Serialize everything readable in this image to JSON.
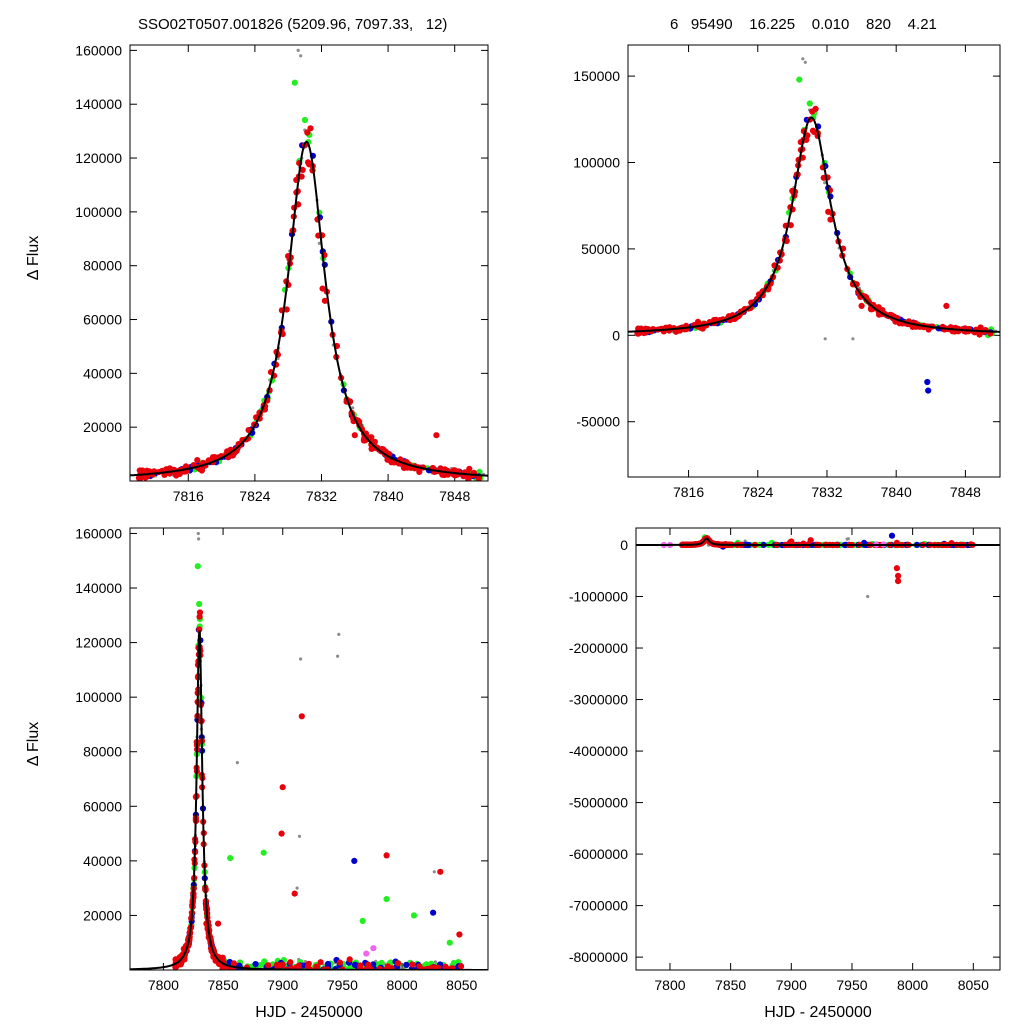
{
  "header": {
    "left": "SSO02T0507.001826 (5209.96, 7097.33,   12)",
    "right": "6   95490    16.225    0.010    820    4.21"
  },
  "colors": {
    "red": "#e8000b",
    "blue": "#0000cc",
    "green": "#22ee22",
    "gray": "#8c8c8c",
    "magenta": "#ee66ee",
    "model": "#000000"
  },
  "chart_data": [
    {
      "type": "scatter",
      "panel": "top-left",
      "xlabel": "",
      "ylabel": "Δ Flux",
      "xlim": [
        7809,
        7852
      ],
      "ylim": [
        0,
        162000
      ],
      "xticks": [
        "7816",
        "7824",
        "7832",
        "7840",
        "7848"
      ],
      "yticks": [
        "20000",
        "40000",
        "60000",
        "80000",
        "100000",
        "120000",
        "140000",
        "160000"
      ],
      "model": {
        "t0": 7830.2,
        "peak": 126000,
        "tE": 2.75
      }
    },
    {
      "type": "scatter",
      "panel": "top-right",
      "xlabel": "",
      "ylabel": "",
      "xlim": [
        7809,
        7852
      ],
      "ylim": [
        -82000,
        168000
      ],
      "xticks": [
        "7816",
        "7824",
        "7832",
        "7840",
        "7848"
      ],
      "yticks": [
        "-50000",
        "0",
        "50000",
        "100000",
        "150000"
      ],
      "model": {
        "t0": 7830.2,
        "peak": 126000,
        "tE": 2.75
      }
    },
    {
      "type": "scatter",
      "panel": "bottom-left",
      "xlabel": "HJD - 2450000",
      "ylabel": "Δ Flux",
      "xlim": [
        7772,
        8072
      ],
      "ylim": [
        0,
        162000
      ],
      "xticks": [
        "7800",
        "7850",
        "7900",
        "7950",
        "8000",
        "8050"
      ],
      "yticks": [
        "20000",
        "40000",
        "60000",
        "80000",
        "100000",
        "120000",
        "140000",
        "160000"
      ],
      "model": {
        "t0": 7830.2,
        "peak": 126000,
        "tE": 2.75
      }
    },
    {
      "type": "scatter",
      "panel": "bottom-right",
      "xlabel": "HJD - 2450000",
      "ylabel": "",
      "xlim": [
        7772,
        8072
      ],
      "ylim": [
        -8250000,
        330000
      ],
      "xticks": [
        "7800",
        "7850",
        "7900",
        "7950",
        "8000",
        "8050"
      ],
      "yticks": [
        "-8000000",
        "-7000000",
        "-6000000",
        "-5000000",
        "-4000000",
        "-3000000",
        "-2000000",
        "-1000000",
        "0"
      ],
      "model": {
        "t0": 7830.2,
        "peak": 126000,
        "tE": 2.75
      }
    }
  ]
}
